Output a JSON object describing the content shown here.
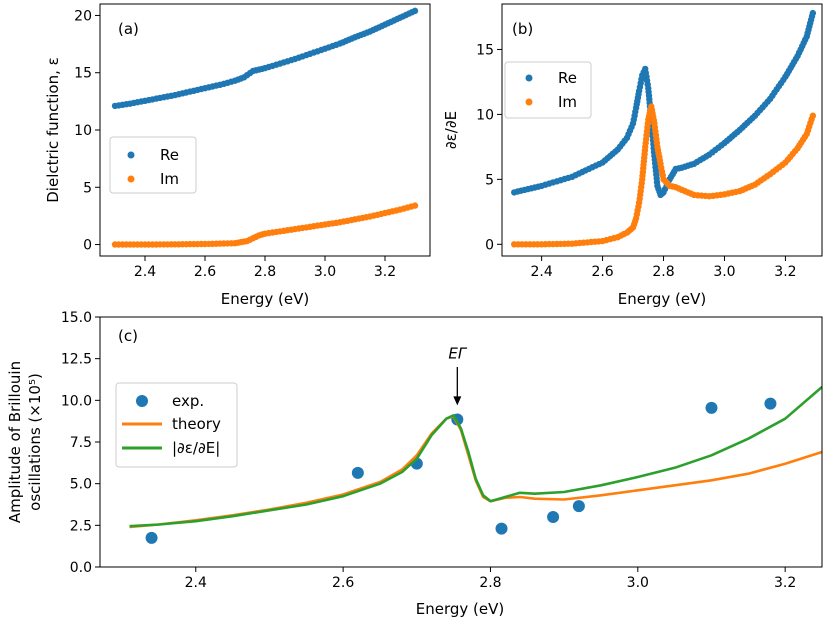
{
  "figure": {
    "colors": {
      "re": "#1f77b4",
      "im": "#ff7f0e",
      "theory": "#ff7f0e",
      "deriv": "#2ca02c"
    }
  },
  "chart_data": [
    {
      "id": "a",
      "type": "scatter",
      "panel_label": "(a)",
      "xlabel": "Energy (eV)",
      "ylabel": "Dielctric function, ε",
      "xlim": [
        2.25,
        3.35
      ],
      "ylim": [
        -1.0,
        21.0
      ],
      "xticks": [
        2.4,
        2.6,
        2.8,
        3.0,
        3.2
      ],
      "xtick_labels": [
        "2.4",
        "2.6",
        "2.8",
        "3.0",
        "3.2"
      ],
      "yticks": [
        0,
        5,
        10,
        15,
        20
      ],
      "ytick_labels": [
        "0",
        "5",
        "10",
        "15",
        "20"
      ],
      "legend": {
        "position": "center-left",
        "entries": [
          "Re",
          "Im"
        ]
      },
      "series": [
        {
          "name": "Re",
          "color": "#1f77b4",
          "x": [
            2.3,
            2.35,
            2.4,
            2.45,
            2.5,
            2.55,
            2.6,
            2.65,
            2.7,
            2.73,
            2.76,
            2.8,
            2.85,
            2.9,
            2.95,
            3.0,
            3.05,
            3.1,
            3.15,
            3.2,
            3.25,
            3.3
          ],
          "y": [
            12.1,
            12.3,
            12.55,
            12.8,
            13.05,
            13.35,
            13.65,
            13.95,
            14.3,
            14.6,
            15.15,
            15.4,
            15.8,
            16.2,
            16.65,
            17.1,
            17.55,
            18.1,
            18.6,
            19.2,
            19.8,
            20.4
          ]
        },
        {
          "name": "Im",
          "color": "#ff7f0e",
          "x": [
            2.3,
            2.4,
            2.5,
            2.6,
            2.7,
            2.74,
            2.76,
            2.78,
            2.8,
            2.85,
            2.9,
            2.95,
            3.0,
            3.05,
            3.1,
            3.15,
            3.2,
            3.25,
            3.3
          ],
          "y": [
            0.0,
            0.0,
            0.02,
            0.05,
            0.12,
            0.3,
            0.55,
            0.8,
            0.95,
            1.15,
            1.35,
            1.55,
            1.75,
            1.95,
            2.2,
            2.45,
            2.75,
            3.05,
            3.4
          ]
        }
      ]
    },
    {
      "id": "b",
      "type": "scatter",
      "panel_label": "(b)",
      "xlabel": "Energy (eV)",
      "ylabel": "∂ε/∂E",
      "xlim": [
        2.27,
        3.32
      ],
      "ylim": [
        -0.9,
        18.5
      ],
      "xticks": [
        2.4,
        2.6,
        2.8,
        3.0,
        3.2
      ],
      "xtick_labels": [
        "2.4",
        "2.6",
        "2.8",
        "3.0",
        "3.2"
      ],
      "yticks": [
        0,
        5,
        10,
        15
      ],
      "ytick_labels": [
        "0",
        "5",
        "10",
        "15"
      ],
      "legend": {
        "position": "upper-left",
        "entries": [
          "Re",
          "Im"
        ]
      },
      "series": [
        {
          "name": "Re",
          "color": "#1f77b4",
          "x": [
            2.31,
            2.4,
            2.5,
            2.6,
            2.65,
            2.68,
            2.7,
            2.71,
            2.72,
            2.73,
            2.74,
            2.75,
            2.76,
            2.77,
            2.78,
            2.79,
            2.8,
            2.82,
            2.84,
            2.86,
            2.9,
            2.95,
            3.0,
            3.05,
            3.1,
            3.15,
            3.2,
            3.24,
            3.27,
            3.29
          ],
          "y": [
            4.0,
            4.5,
            5.2,
            6.3,
            7.3,
            8.2,
            9.3,
            10.5,
            11.8,
            13.0,
            13.5,
            12.0,
            9.5,
            6.8,
            4.5,
            3.8,
            4.0,
            5.0,
            5.8,
            5.9,
            6.2,
            6.9,
            7.8,
            8.8,
            9.9,
            11.2,
            12.9,
            14.5,
            16.0,
            17.8
          ]
        },
        {
          "name": "Im",
          "color": "#ff7f0e",
          "x": [
            2.31,
            2.4,
            2.5,
            2.6,
            2.65,
            2.68,
            2.7,
            2.71,
            2.72,
            2.73,
            2.74,
            2.75,
            2.76,
            2.77,
            2.78,
            2.79,
            2.8,
            2.82,
            2.84,
            2.86,
            2.9,
            2.95,
            3.0,
            3.05,
            3.1,
            3.15,
            3.2,
            3.24,
            3.27,
            3.29
          ],
          "y": [
            0.0,
            0.0,
            0.05,
            0.25,
            0.55,
            0.9,
            1.3,
            2.0,
            3.2,
            5.0,
            7.5,
            9.6,
            10.6,
            9.3,
            7.5,
            6.2,
            5.0,
            4.5,
            4.4,
            4.2,
            3.8,
            3.7,
            3.85,
            4.1,
            4.6,
            5.4,
            6.3,
            7.4,
            8.5,
            9.9
          ]
        }
      ]
    },
    {
      "id": "c",
      "type": "line",
      "panel_label": "(c)",
      "xlabel": "Energy (eV)",
      "ylabel_line1": "Amplitude of Brillouin",
      "ylabel_line2": "oscillations (×10⁵)",
      "xlim": [
        2.27,
        3.25
      ],
      "ylim": [
        0.0,
        15.0
      ],
      "xticks": [
        2.4,
        2.6,
        2.8,
        3.0,
        3.2
      ],
      "xtick_labels": [
        "2.4",
        "2.6",
        "2.8",
        "3.0",
        "3.2"
      ],
      "yticks": [
        0.0,
        2.5,
        5.0,
        7.5,
        10.0,
        12.5,
        15.0
      ],
      "ytick_labels": [
        "0.0",
        "2.5",
        "5.0",
        "7.5",
        "10.0",
        "12.5",
        "15.0"
      ],
      "annotation": {
        "text": "EΓ",
        "x": 2.755,
        "y_text": 12.5,
        "y_arrow_start": 12.0,
        "y_arrow_end": 9.7
      },
      "legend": {
        "position": "left",
        "entries": [
          "exp.",
          "theory",
          "|∂ε/∂E|"
        ]
      },
      "series": [
        {
          "name": "exp.",
          "kind": "markers",
          "color": "#1f77b4",
          "x": [
            2.34,
            2.62,
            2.7,
            2.755,
            2.815,
            2.885,
            2.92,
            3.1,
            3.18
          ],
          "y": [
            1.75,
            5.65,
            6.2,
            8.85,
            2.3,
            3.0,
            3.65,
            9.55,
            9.8
          ]
        },
        {
          "name": "theory",
          "kind": "line",
          "color": "#ff7f0e",
          "x": [
            2.31,
            2.35,
            2.4,
            2.45,
            2.5,
            2.55,
            2.6,
            2.65,
            2.68,
            2.7,
            2.72,
            2.74,
            2.75,
            2.76,
            2.77,
            2.78,
            2.79,
            2.8,
            2.82,
            2.84,
            2.86,
            2.9,
            2.95,
            3.0,
            3.05,
            3.1,
            3.15,
            3.2,
            3.25
          ],
          "y": [
            2.4,
            2.55,
            2.8,
            3.1,
            3.45,
            3.85,
            4.35,
            5.1,
            5.85,
            6.7,
            8.0,
            8.9,
            9.05,
            8.2,
            6.7,
            5.2,
            4.2,
            3.95,
            4.15,
            4.2,
            4.1,
            4.05,
            4.3,
            4.6,
            4.9,
            5.2,
            5.6,
            6.2,
            6.9
          ]
        },
        {
          "name": "|∂ε/∂E|",
          "kind": "line",
          "color": "#2ca02c",
          "x": [
            2.31,
            2.35,
            2.4,
            2.45,
            2.5,
            2.55,
            2.6,
            2.65,
            2.68,
            2.7,
            2.72,
            2.74,
            2.75,
            2.76,
            2.77,
            2.78,
            2.79,
            2.8,
            2.82,
            2.84,
            2.86,
            2.9,
            2.95,
            3.0,
            3.05,
            3.1,
            3.15,
            3.2,
            3.25
          ],
          "y": [
            2.45,
            2.55,
            2.75,
            3.05,
            3.4,
            3.75,
            4.25,
            5.0,
            5.7,
            6.5,
            7.9,
            8.9,
            9.1,
            8.3,
            6.9,
            5.3,
            4.3,
            3.95,
            4.2,
            4.45,
            4.4,
            4.5,
            4.9,
            5.4,
            5.95,
            6.7,
            7.7,
            8.9,
            10.8
          ]
        }
      ]
    }
  ]
}
